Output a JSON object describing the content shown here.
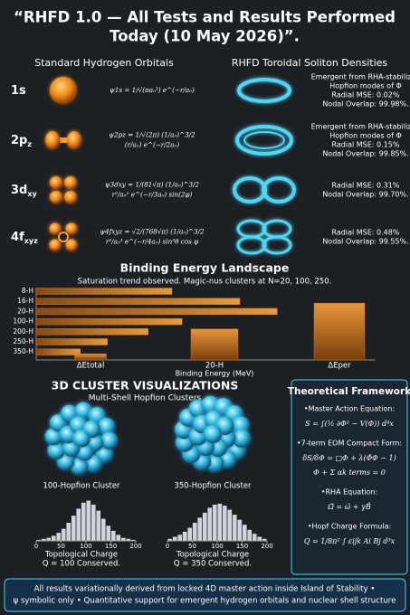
{
  "title": [
    "“RHFD 1.0 — All Tests and Results Performed",
    "Today (10 May 2026)”."
  ],
  "orbitals": {
    "heading_left": "Standard Hydrogen Orbitals",
    "heading_right": "RHFD Toroidal Soliton Densities",
    "rows": [
      {
        "label": "1s",
        "label_sub": "",
        "formula": [
          "ψ1s = 1/√(πa₀³) e^(−r/a₀)"
        ],
        "desc": [
          "Emergent from RHA-stabilized",
          "Hopfion modes of Φ",
          "Radial MSE: 0.02%",
          "Nodal Overlap: 99.98%."
        ]
      },
      {
        "label": "2p",
        "label_sub": "z",
        "formula": [
          "ψ2pz = 1/√(2π) (1/a₀)^3/2",
          "(r/a₀) e^(−r/2a₀)"
        ],
        "desc": [
          "Emergent from RHA-stabilized",
          "Hopfion modes of Φ",
          "Radial MSE: 0.15%",
          "Nodal Overlap: 99.85%."
        ]
      },
      {
        "label": "3d",
        "label_sub": "xy",
        "formula": [
          "ψ3dxy = 1/(81√π) (1/a₀)^3/2",
          "r²/a₀² e^(−r/3a₀) sin(2φ)"
        ],
        "desc": [
          "Radial MSE: 0.31%",
          "Nodal Overlap: 99.70%."
        ]
      },
      {
        "label": "4f",
        "label_sub": "xyz",
        "formula": [
          "ψ4fxyz = √2/(768√π) (1/a₀)^3/2",
          "r³/a₀³ e^(−r/4a₀) sin³θ cos φ"
        ],
        "desc": [
          "Radial MSE: 0.48%",
          "Nodal Overlap: 99.55%."
        ]
      }
    ]
  },
  "clusters": {
    "title": "3D CLUSTER VISUALIZATIONS",
    "subtitle": "Multi-Shell Hopfion Clusters"
  },
  "chart_data": [
    {
      "type": "hbar",
      "title": "Binding Energy Landscape",
      "subtitle": "Saturation trend observed. Magic-nus clusters at N=20, 100, 250.",
      "categories": [
        "8-H",
        "16-H",
        "20-H",
        "100-H",
        "200-H",
        "250-H",
        "350-H"
      ],
      "values": [
        40,
        60,
        71,
        43,
        33,
        21,
        13
      ],
      "xlim": [
        0,
        100
      ],
      "color": "#d9822b"
    },
    {
      "type": "bar",
      "categories": [
        "ΔEtotal",
        "20-H",
        "ΔEper"
      ],
      "x_label": "Binding Energy (MeV)",
      "values": [
        6,
        30,
        55
      ],
      "ylim": [
        0,
        70
      ],
      "color": "#c8741f"
    },
    {
      "type": "histogram",
      "title": "100-Hopfion Cluster",
      "x_label": "Topological Charge",
      "caption": "Q = 100 Conserved.",
      "bins": [
        0,
        10,
        20,
        30,
        40,
        50,
        60,
        70,
        80,
        90,
        100,
        110,
        120,
        130,
        140,
        150,
        160,
        170,
        180,
        190,
        200
      ],
      "counts": [
        1,
        2,
        3,
        5,
        8,
        12,
        18,
        25,
        32,
        38,
        40,
        36,
        30,
        22,
        15,
        10,
        6,
        3,
        2,
        1
      ],
      "xlim": [
        0,
        200
      ],
      "xticks": [
        0,
        50,
        100,
        150,
        200
      ],
      "ylim": [
        0,
        45
      ],
      "color": "#cfd4da"
    },
    {
      "type": "histogram",
      "title": "350-Hopfion Cluster",
      "x_label": "Topological Charge",
      "caption": "Q = 350 Conserved.",
      "bins": [
        0,
        10,
        20,
        30,
        40,
        50,
        60,
        70,
        80,
        90,
        100,
        110,
        120,
        130,
        140,
        150,
        160,
        170,
        180,
        190,
        200
      ],
      "counts": [
        2,
        4,
        6,
        9,
        13,
        18,
        23,
        28,
        33,
        36,
        37,
        35,
        31,
        26,
        21,
        16,
        11,
        7,
        4,
        2
      ],
      "xlim": [
        0,
        200
      ],
      "xticks": [
        0,
        50,
        100,
        150,
        200
      ],
      "ylim": [
        0,
        45
      ],
      "color": "#cfd4da"
    }
  ],
  "framework": {
    "title": "Theoretical Framework",
    "items": [
      {
        "label": "•Master Action Equation:",
        "formula": [
          "S = ∫(½ ∂Φ² − V(Φ)) d⁴x"
        ]
      },
      {
        "label": "•7-term EOM Compact Form:",
        "formula": [
          "δS/δΦ = □Φ + λ(Φ̄Φ − 1)",
          "Φ + Σ αk terms = 0"
        ]
      },
      {
        "label": "•RHA Equation:",
        "formula": [
          "Ω̃ = ω̃ + γB̃"
        ]
      },
      {
        "label": "•Hopf Charge Formula:",
        "formula": [
          "Q = 1/8π² ∫ εijk Ai Bj d³x"
        ]
      }
    ]
  },
  "footer": [
    "All results variationally derived from locked 4D master action inside Island of Stability •",
    "ψ symbolic only • Quantitative support for emergent hydrogen orbitals and nuclear shell structure"
  ]
}
